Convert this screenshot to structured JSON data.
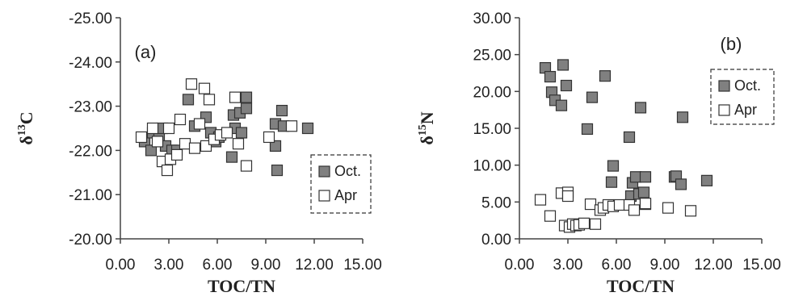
{
  "chart_data": [
    {
      "type": "scatter",
      "panel_label": "(a)",
      "xlabel": "TOC/TN",
      "ylabel": "δ13C",
      "ylabel_main": "δ",
      "ylabel_sup": "13",
      "ylabel_tail": "C",
      "xlim": [
        0,
        15
      ],
      "ylim": [
        -20,
        -25
      ],
      "y_inverted": true,
      "x_ticks": [
        "0.00",
        "3.00",
        "6.00",
        "9.00",
        "12.00",
        "15.00"
      ],
      "y_ticks": [
        "-25.00",
        "-24.00",
        "-23.00",
        "-22.00",
        "-21.00",
        "-20.00"
      ],
      "grid": false,
      "legend": {
        "placement": "bottom-right",
        "border": "dashed"
      },
      "series": [
        {
          "name": "Oct.",
          "marker": "filled-square",
          "fill": "#808080",
          "points": [
            [
              1.5,
              -22.2
            ],
            [
              1.9,
              -22.0
            ],
            [
              2.0,
              -22.4
            ],
            [
              2.4,
              -22.3
            ],
            [
              2.6,
              -22.5
            ],
            [
              2.8,
              -22.1
            ],
            [
              3.2,
              -22.0
            ],
            [
              3.5,
              -22.0
            ],
            [
              4.2,
              -23.15
            ],
            [
              4.6,
              -22.55
            ],
            [
              5.3,
              -22.75
            ],
            [
              5.6,
              -22.4
            ],
            [
              5.9,
              -22.2
            ],
            [
              6.1,
              -22.3
            ],
            [
              6.9,
              -21.85
            ],
            [
              7.0,
              -22.8
            ],
            [
              7.1,
              -22.5
            ],
            [
              7.4,
              -22.85
            ],
            [
              7.5,
              -22.4
            ],
            [
              7.8,
              -22.95
            ],
            [
              7.8,
              -23.2
            ],
            [
              9.6,
              -22.1
            ],
            [
              9.6,
              -22.6
            ],
            [
              9.7,
              -21.55
            ],
            [
              10.0,
              -22.9
            ],
            [
              10.1,
              -22.55
            ],
            [
              11.6,
              -22.5
            ]
          ]
        },
        {
          "name": "Apr",
          "marker": "open-square",
          "fill": "#ffffff",
          "points": [
            [
              1.3,
              -22.3
            ],
            [
              2.0,
              -22.5
            ],
            [
              2.3,
              -22.2
            ],
            [
              2.6,
              -21.75
            ],
            [
              2.9,
              -21.55
            ],
            [
              3.0,
              -22.5
            ],
            [
              3.1,
              -21.8
            ],
            [
              3.5,
              -21.9
            ],
            [
              3.7,
              -22.7
            ],
            [
              4.0,
              -22.15
            ],
            [
              4.4,
              -23.5
            ],
            [
              4.6,
              -22.05
            ],
            [
              4.9,
              -22.6
            ],
            [
              5.2,
              -23.4
            ],
            [
              5.3,
              -22.1
            ],
            [
              5.5,
              -23.15
            ],
            [
              5.8,
              -22.25
            ],
            [
              6.2,
              -22.35
            ],
            [
              6.6,
              -22.4
            ],
            [
              7.1,
              -23.2
            ],
            [
              7.3,
              -22.15
            ],
            [
              7.8,
              -21.65
            ],
            [
              9.2,
              -22.3
            ],
            [
              10.6,
              -22.55
            ]
          ]
        }
      ]
    },
    {
      "type": "scatter",
      "panel_label": "(b)",
      "xlabel": "TOC/TN",
      "ylabel": "δ15N",
      "ylabel_main": "δ",
      "ylabel_sup": "15",
      "ylabel_tail": "N",
      "xlim": [
        0,
        15
      ],
      "ylim": [
        0,
        30
      ],
      "y_inverted": false,
      "x_ticks": [
        "0.00",
        "3.00",
        "6.00",
        "9.00",
        "12.00",
        "15.00"
      ],
      "y_ticks": [
        "0.00",
        "5.00",
        "10.00",
        "15.00",
        "20.00",
        "25.00",
        "30.00"
      ],
      "grid": false,
      "legend": {
        "placement": "top-right",
        "border": "dashed"
      },
      "series": [
        {
          "name": "Oct.",
          "marker": "filled-square",
          "fill": "#808080",
          "points": [
            [
              1.6,
              23.2
            ],
            [
              1.9,
              22.0
            ],
            [
              2.0,
              19.9
            ],
            [
              2.2,
              18.8
            ],
            [
              2.6,
              18.1
            ],
            [
              2.7,
              23.6
            ],
            [
              2.9,
              20.8
            ],
            [
              4.2,
              14.9
            ],
            [
              4.5,
              19.2
            ],
            [
              5.3,
              22.1
            ],
            [
              5.8,
              9.9
            ],
            [
              5.7,
              7.7
            ],
            [
              6.8,
              13.8
            ],
            [
              6.9,
              5.8
            ],
            [
              7.0,
              7.6
            ],
            [
              7.2,
              8.4
            ],
            [
              7.4,
              6.1
            ],
            [
              7.5,
              17.8
            ],
            [
              7.7,
              6.3
            ],
            [
              7.8,
              8.4
            ],
            [
              7.8,
              4.7
            ],
            [
              9.6,
              8.4
            ],
            [
              9.7,
              8.5
            ],
            [
              10.0,
              7.4
            ],
            [
              10.1,
              16.5
            ],
            [
              11.6,
              7.9
            ]
          ]
        },
        {
          "name": "Apr",
          "marker": "open-square",
          "fill": "#ffffff",
          "points": [
            [
              1.3,
              5.3
            ],
            [
              1.9,
              3.1
            ],
            [
              2.6,
              6.2
            ],
            [
              2.8,
              1.8
            ],
            [
              3.0,
              6.3
            ],
            [
              3.0,
              5.8
            ],
            [
              3.1,
              1.6
            ],
            [
              3.3,
              2.0
            ],
            [
              3.5,
              1.8
            ],
            [
              3.7,
              1.9
            ],
            [
              4.0,
              2.1
            ],
            [
              4.4,
              4.7
            ],
            [
              4.7,
              2.0
            ],
            [
              5.0,
              3.9
            ],
            [
              5.2,
              4.2
            ],
            [
              5.5,
              4.6
            ],
            [
              5.8,
              4.4
            ],
            [
              6.2,
              4.6
            ],
            [
              6.8,
              4.6
            ],
            [
              7.1,
              3.9
            ],
            [
              7.8,
              4.8
            ],
            [
              9.2,
              4.2
            ],
            [
              10.6,
              3.8
            ]
          ]
        }
      ]
    }
  ]
}
